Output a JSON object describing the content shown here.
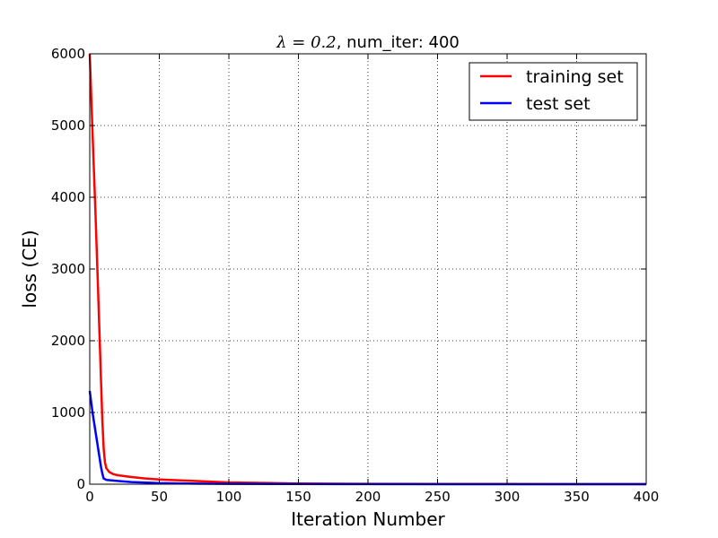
{
  "chart_data": {
    "type": "line",
    "title": {
      "math": "λ = 0.2",
      "text": ", num_iter: 400"
    },
    "xlabel": "Iteration Number",
    "ylabel": "loss (CE)",
    "xlim": [
      0,
      400
    ],
    "ylim": [
      0,
      6000
    ],
    "xticks": [
      "0",
      "50",
      "100",
      "150",
      "200",
      "250",
      "300",
      "350",
      "400"
    ],
    "yticks": [
      "0",
      "1000",
      "2000",
      "3000",
      "4000",
      "5000",
      "6000"
    ],
    "grid": true,
    "legend_position": "top-right",
    "series": [
      {
        "name": "training set",
        "color": "#ff0000",
        "x": [
          0,
          2,
          4,
          6,
          8,
          9,
          10,
          11,
          12,
          14,
          17,
          20,
          30,
          40,
          50,
          75,
          100,
          150,
          200,
          300,
          400
        ],
        "y": [
          6000,
          4900,
          3850,
          2700,
          1500,
          900,
          500,
          300,
          220,
          170,
          140,
          125,
          100,
          80,
          65,
          45,
          25,
          10,
          5,
          2,
          1
        ]
      },
      {
        "name": "test set",
        "color": "#0000ff",
        "x": [
          0,
          2,
          4,
          6,
          8,
          9,
          10,
          12,
          15,
          20,
          30,
          50,
          75,
          100,
          150,
          200,
          300,
          400
        ],
        "y": [
          1300,
          1000,
          750,
          500,
          250,
          150,
          80,
          60,
          55,
          45,
          30,
          15,
          8,
          5,
          2,
          1,
          0.5,
          0.2
        ]
      }
    ]
  }
}
